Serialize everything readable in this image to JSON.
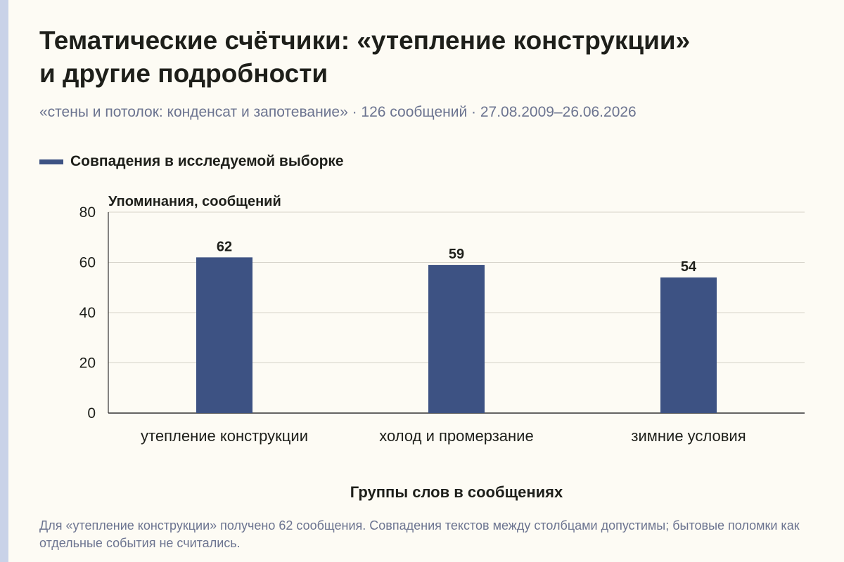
{
  "title_line1": "Тематические счётчики: «утепление конструкции»",
  "title_line2": "и другие подробности",
  "subtitle": "«стены и потолок: конденсат и запотевание» · 126 сообщений · 27.08.2009–26.06.2026",
  "footnote": "Для «утепление конструкции» получено 62 сообщения. Совпадения текстов между столбцами допустимы; бытовые поломки как отдельные события не считались.",
  "colors": {
    "bar": "#3d5283",
    "accent_stripe": "#c9d2e8",
    "background": "#fdfbf4"
  },
  "chart_data": {
    "type": "bar",
    "categories": [
      "утепление конструкции",
      "холод и промерзание",
      "зимние условия"
    ],
    "series": [
      {
        "name": "Совпадения в исследуемой выборке",
        "values": [
          62,
          59,
          54
        ]
      }
    ],
    "data_labels": [
      "62",
      "59",
      "54"
    ],
    "xlabel": "Группы слов в сообщениях",
    "ylabel": "Упоминания, сообщений",
    "ylim": [
      0,
      80
    ],
    "yticks": [
      0,
      20,
      40,
      60,
      80
    ],
    "grid": true,
    "legend_position": "top-left"
  }
}
